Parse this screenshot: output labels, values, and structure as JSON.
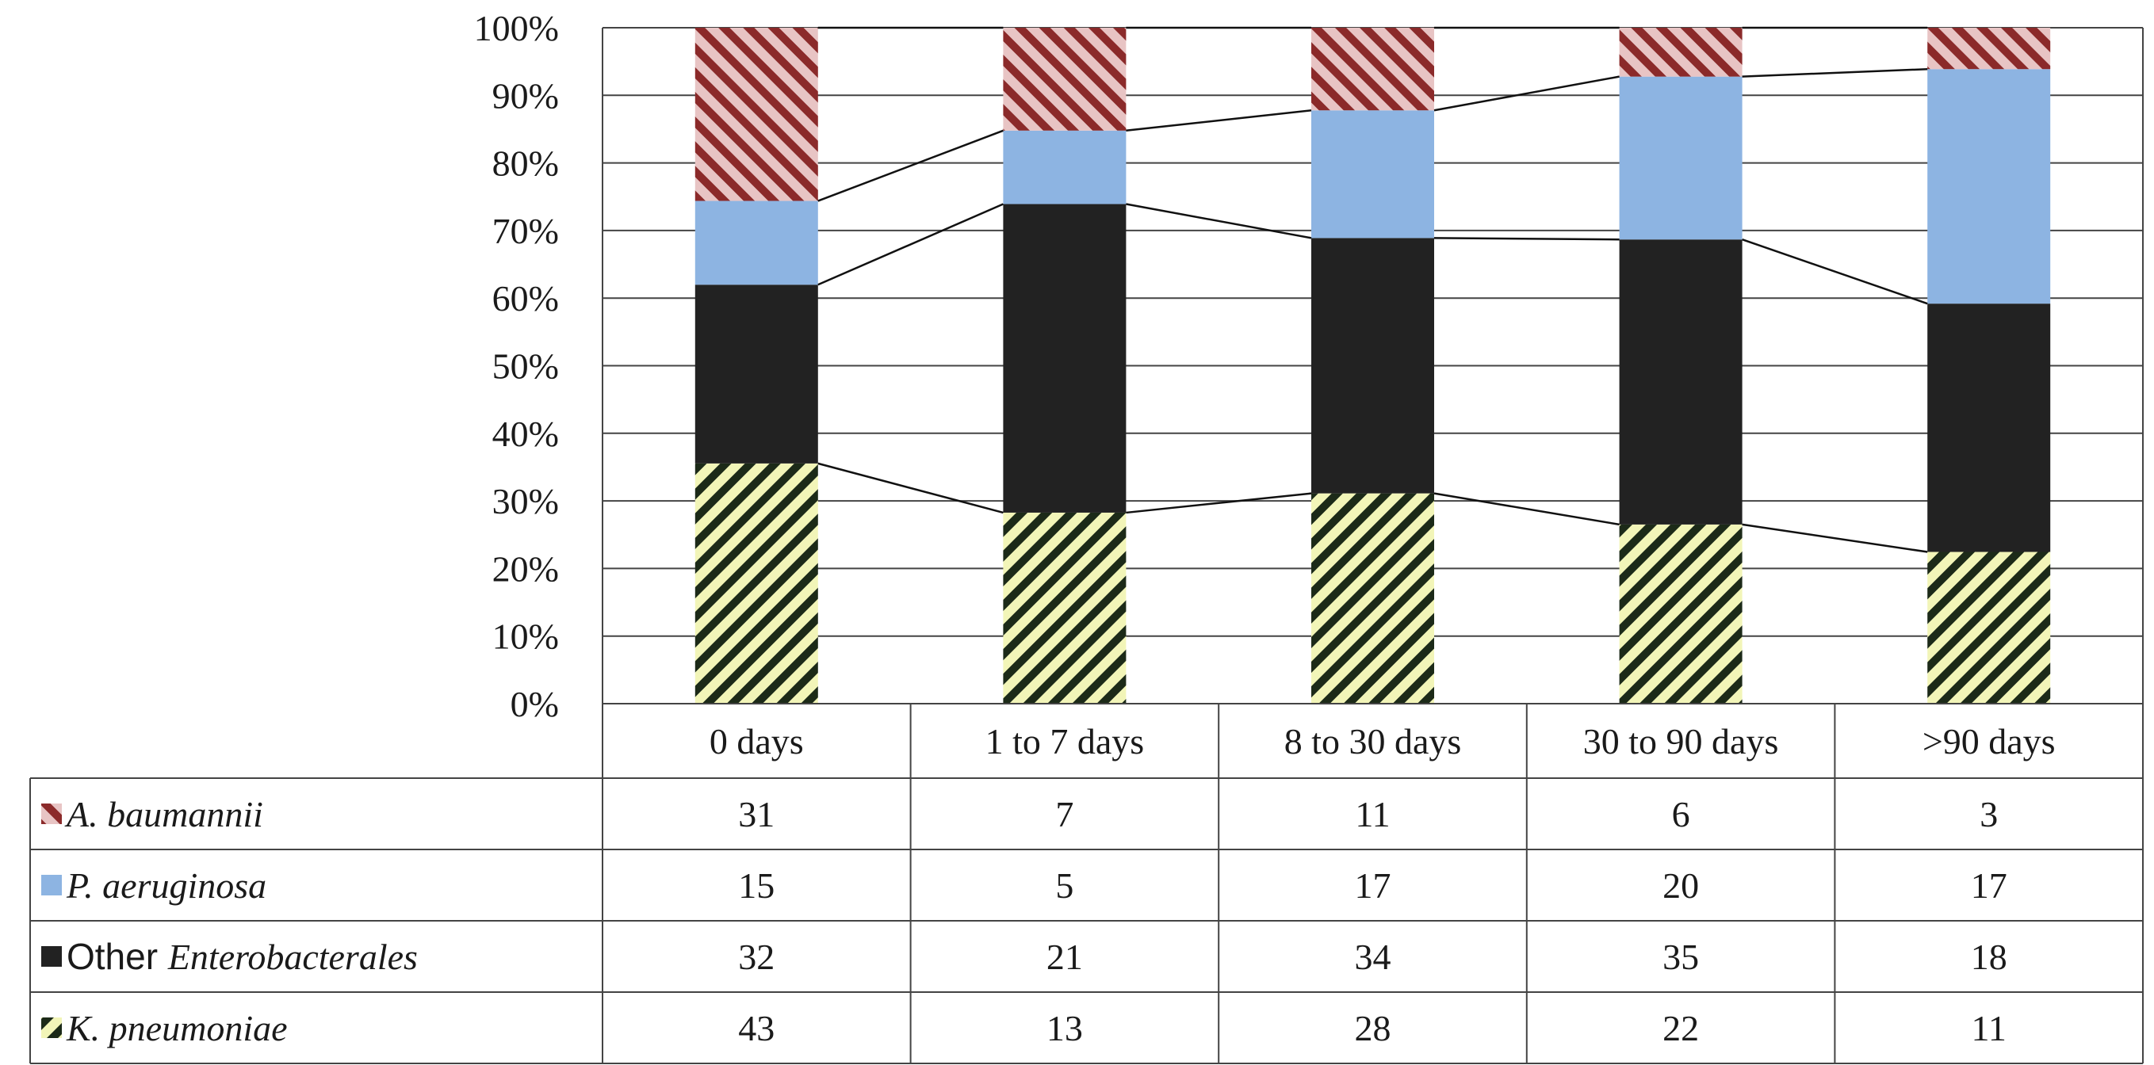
{
  "chart_data": {
    "type": "bar",
    "stacked": true,
    "normalized": true,
    "categories": [
      "0 days",
      "1 to 7 days",
      "8 to 30 days",
      "30 to 90 days",
      ">90 days"
    ],
    "y_ticks": [
      "0%",
      "10%",
      "20%",
      "30%",
      "40%",
      "50%",
      "60%",
      "70%",
      "80%",
      "90%",
      "100%"
    ],
    "ylim": [
      0,
      100
    ],
    "grid": true,
    "legend": "data-table-below",
    "series": [
      {
        "key": "kpn",
        "label_prefix": "",
        "label_italic": "K. pneumoniae",
        "values": [
          43,
          13,
          28,
          22,
          11
        ],
        "fill": "#f2f5b8",
        "hatch": "#1c2a18",
        "pattern": "diag-right"
      },
      {
        "key": "ent",
        "label_prefix": "Other ",
        "label_italic": "Enterobacterales",
        "values": [
          32,
          21,
          34,
          35,
          18
        ],
        "fill": "#222222",
        "pattern": "solid"
      },
      {
        "key": "pae",
        "label_prefix": "",
        "label_italic": "P. aeruginosa",
        "values": [
          15,
          5,
          17,
          20,
          17
        ],
        "fill": "#8db4e2",
        "pattern": "solid"
      },
      {
        "key": "aba",
        "label_prefix": "",
        "label_italic": "A. baumannii",
        "values": [
          31,
          7,
          11,
          6,
          3
        ],
        "fill": "#e8c4c4",
        "hatch": "#8b2a2a",
        "pattern": "diag-left"
      }
    ],
    "table_order": [
      "aba",
      "pae",
      "ent",
      "kpn"
    ]
  }
}
